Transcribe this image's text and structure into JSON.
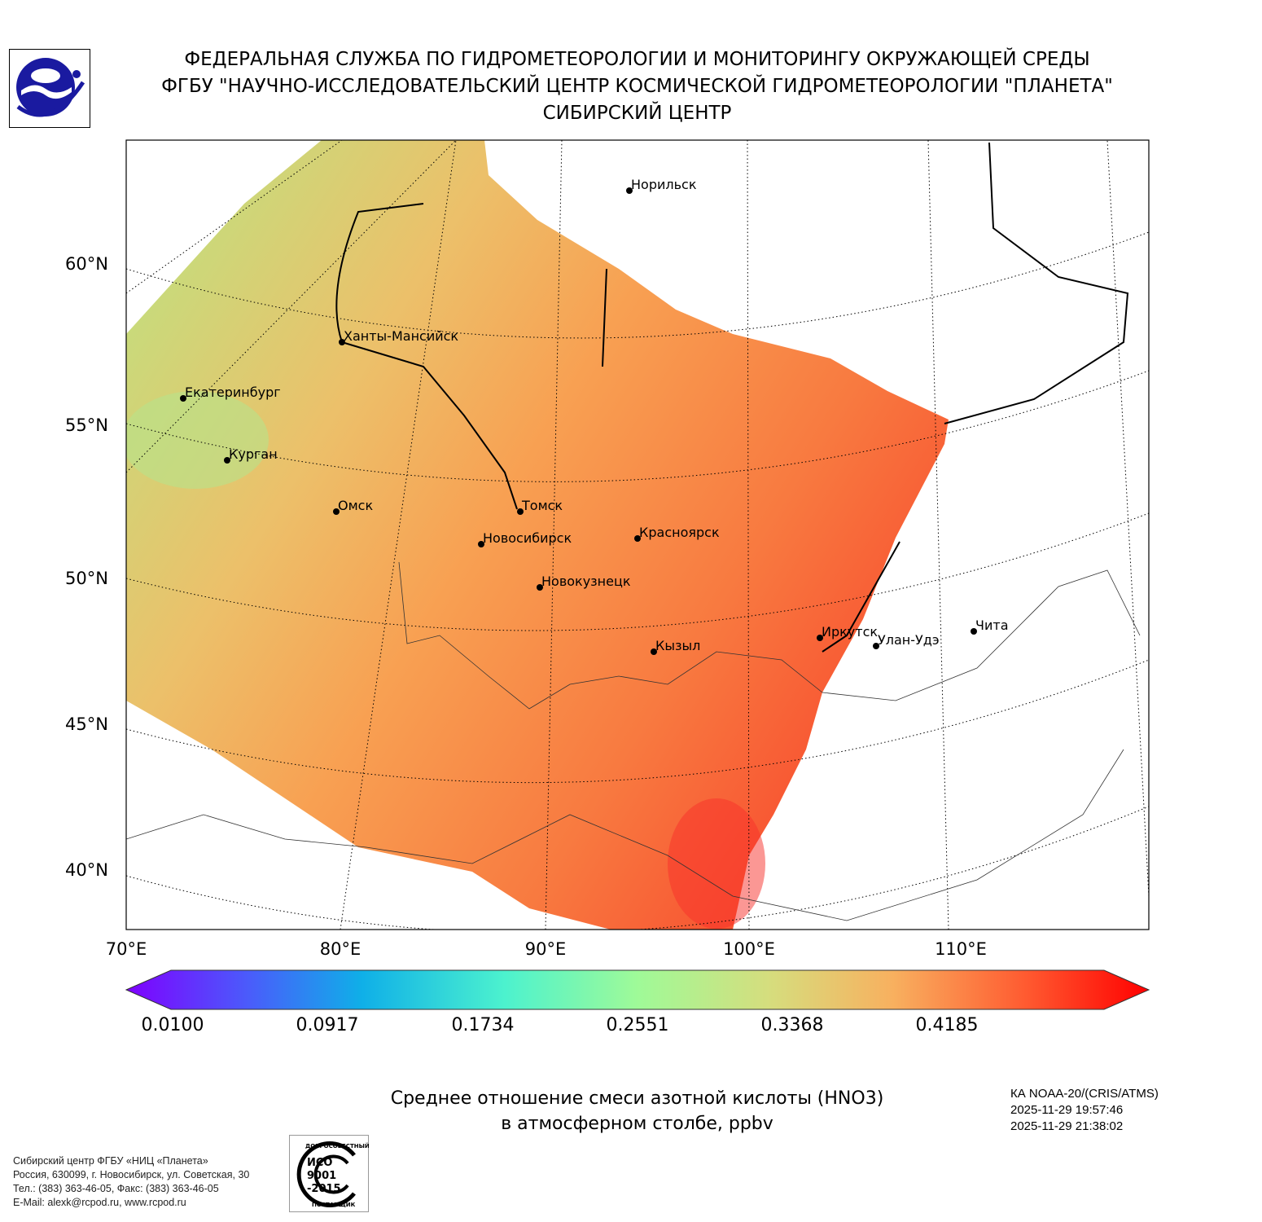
{
  "header": {
    "line1": "ФЕДЕРАЛЬНАЯ СЛУЖБА ПО ГИДРОМЕТЕОРОЛОГИИ И МОНИТОРИНГУ ОКРУЖАЮЩЕЙ СРЕДЫ",
    "line2": "ФГБУ \"НАУЧНО-ИССЛЕДОВАТЕЛЬСКИЙ ЦЕНТР КОСМИЧЕСКОЙ ГИДРОМЕТЕОРОЛОГИИ \"ПЛАНЕТА\"",
    "line3": "СИБИРСКИЙ ЦЕНТР"
  },
  "map": {
    "lat_labels": [
      "60°N",
      "55°N",
      "50°N",
      "45°N",
      "40°N"
    ],
    "lon_labels": [
      "70°E",
      "80°E",
      "90°E",
      "100°E",
      "110°E"
    ],
    "cities": [
      "Норильск",
      "Ханты-Мансийск",
      "Екатеринбург",
      "Курган",
      "Омск",
      "Томск",
      "Новосибирск",
      "Красноярск",
      "Новокузнецк",
      "Кызыл",
      "Иркутск",
      "Улан-Удэ",
      "Чита"
    ]
  },
  "colorbar": {
    "ticks": [
      "0.0100",
      "0.0917",
      "0.1734",
      "0.2551",
      "0.3368",
      "0.4185"
    ],
    "colors": [
      "#7f00ff",
      "#4a5cfb",
      "#0fafe8",
      "#4cf2ce",
      "#9ffa98",
      "#d6dd7d",
      "#f8b05f",
      "#ff5a30",
      "#ff0000"
    ]
  },
  "title": {
    "line1": "Среднее отношение смеси азотной кислоты (HNO3)",
    "line2": "в атмосферном столбе, ppbv"
  },
  "satellite": {
    "name": "КА NOAA-20/(CRIS/ATMS)",
    "start": "2025-11-29 19:57:46",
    "end": "2025-11-29 21:38:02"
  },
  "footer": {
    "org": "Сибирский центр ФГБУ «НИЦ «Планета»",
    "address": "Россия, 630099, г. Новосибирск, ул. Советская, 30",
    "phone": "Тел.: (383) 363-46-05, Факс: (383) 363-46-05",
    "email": "E-Mail: alexk@rcpod.ru, www.rcpod.ru"
  },
  "iso_badge": {
    "top": "ДОБРОСОВЕСТНЫЙ",
    "mid1": "ИСО",
    "mid2": "9001",
    "mid3": "-2015",
    "bottom": "ПОСТАВЩИК"
  }
}
